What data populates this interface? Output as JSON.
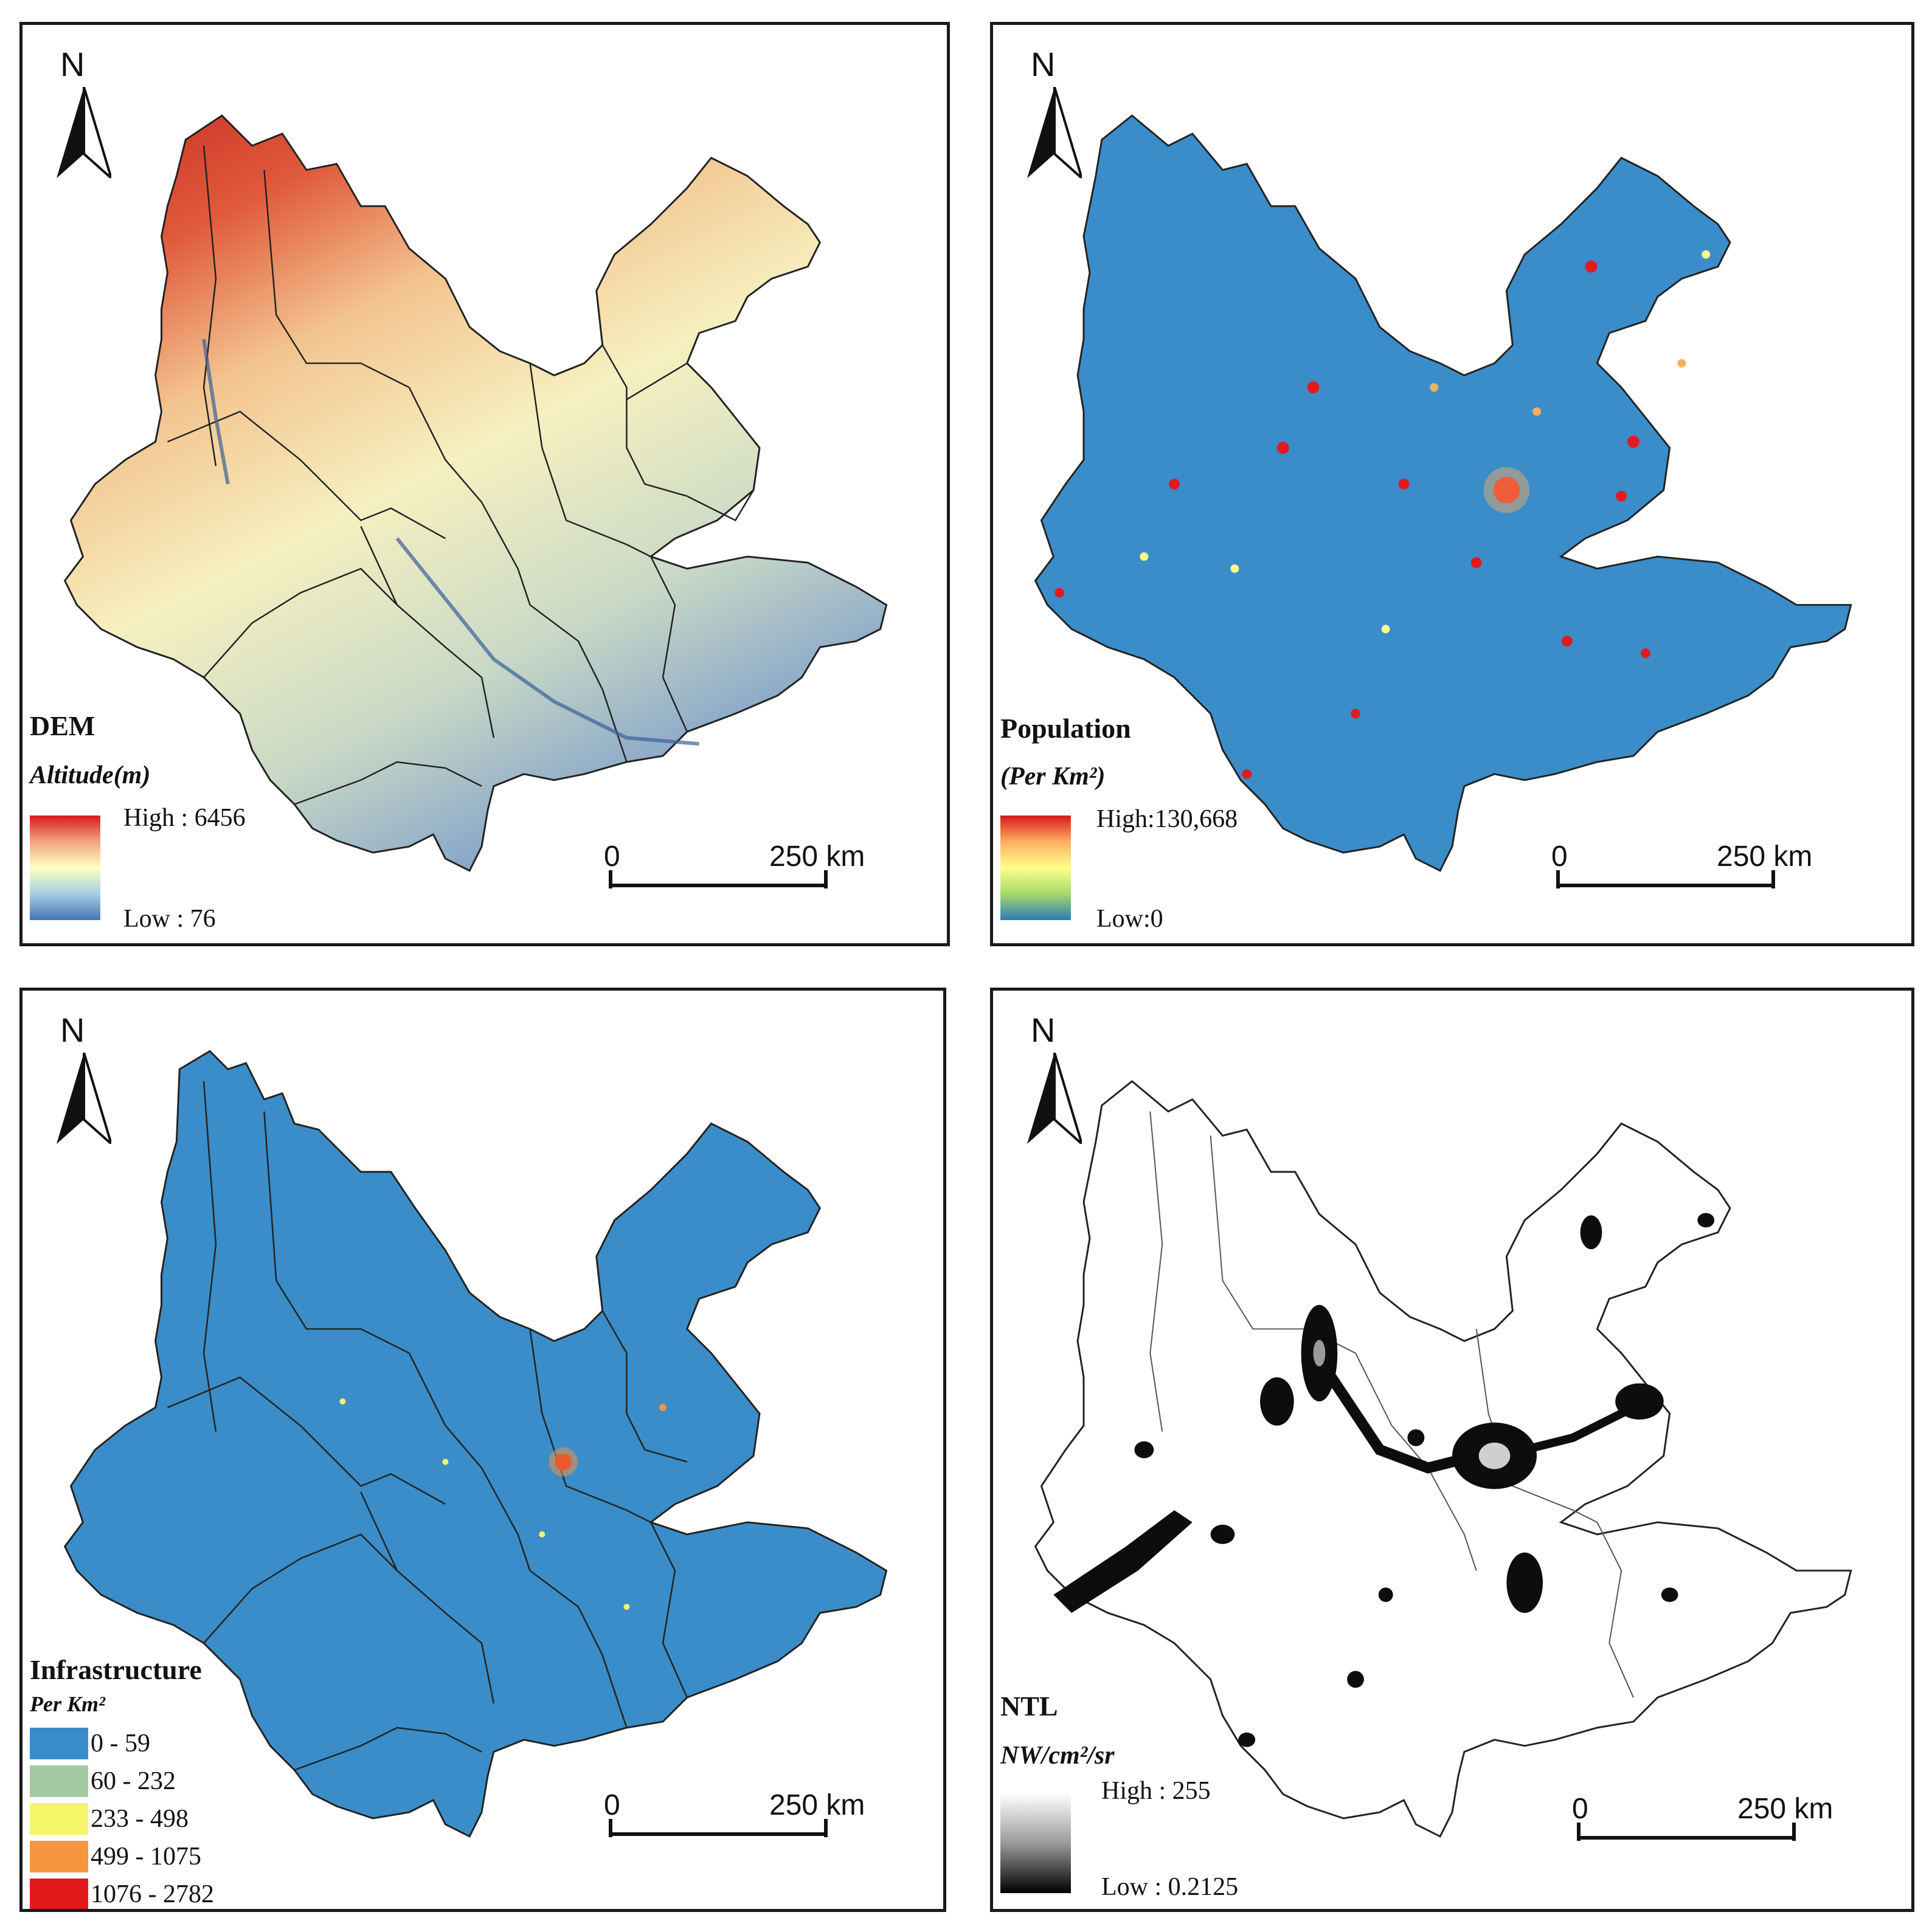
{
  "panels": {
    "dem": {
      "title": "DEM",
      "subtitle": "Altitude(m)",
      "high": "High : 6456",
      "low": "Low : 76",
      "ramp_colors": [
        "#d7191c",
        "#f4a582",
        "#ffffbf",
        "#a6cee3",
        "#4575b4"
      ],
      "scale": {
        "zero": "0",
        "distance": "250 km"
      },
      "north": "N"
    },
    "population": {
      "title": "Population",
      "subtitle": "(Per Km²)",
      "high": "High:130,668",
      "low": "Low:0",
      "ramp_colors": [
        "#d7191c",
        "#fdae61",
        "#ffff8c",
        "#a6d96a",
        "#2c7bb6"
      ],
      "base_color": "#3a8dc8",
      "scale": {
        "zero": "0",
        "distance": "250 km"
      },
      "north": "N"
    },
    "infrastructure": {
      "title": "Infrastructure",
      "subtitle": "Per Km²",
      "classes": [
        {
          "label": "0 - 59",
          "color": "#3a8dc8"
        },
        {
          "label": "60 - 232",
          "color": "#a3c9a0"
        },
        {
          "label": "233 - 498",
          "color": "#f5f56a"
        },
        {
          "label": "499 - 1075",
          "color": "#f79540"
        },
        {
          "label": "1076 - 2782",
          "color": "#e31a1c"
        }
      ],
      "scale": {
        "zero": "0",
        "distance": "250 km"
      },
      "north": "N"
    },
    "ntl": {
      "title": "NTL",
      "subtitle": "NW/cm²/sr",
      "high": "High : 255",
      "low": "Low : 0.2125",
      "ramp_colors": [
        "#ffffff",
        "#9a9a9a",
        "#000000"
      ],
      "scale": {
        "zero": "0",
        "distance": "250 km"
      },
      "north": "N"
    }
  }
}
